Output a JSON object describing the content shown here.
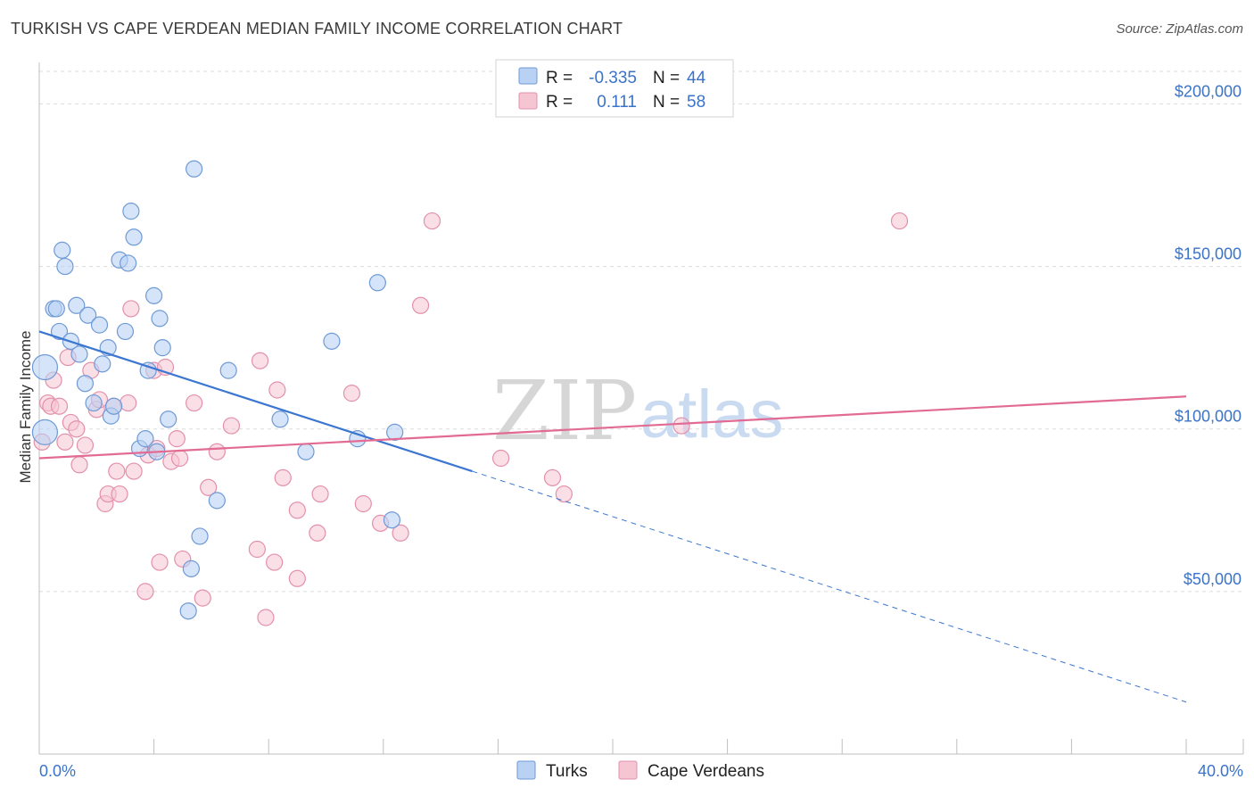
{
  "title": "TURKISH VS CAPE VERDEAN MEDIAN FAMILY INCOME CORRELATION CHART",
  "source": "Source: ZipAtlas.com",
  "watermark": {
    "zip": "ZIP",
    "atlas": "atlas"
  },
  "colors": {
    "turks_fill": "#b9d2f3",
    "turks_stroke": "#6f9ad6",
    "turks_line": "#3b76d1",
    "cape_fill": "#f6c5d4",
    "cape_stroke": "#e390ab",
    "cape_line": "#e26b93",
    "grid": "#dcdcdc",
    "axis_text": "#3a73c9"
  },
  "legend": {
    "rows": [
      {
        "r_label": "R =",
        "r_value": "-0.335",
        "n_label": "N =",
        "n_value": "44"
      },
      {
        "r_label": "R =",
        "r_value": "0.111",
        "n_label": "N =",
        "n_value": "58"
      }
    ]
  },
  "chart_data": {
    "type": "scatter",
    "title": "TURKISH VS CAPE VERDEAN MEDIAN FAMILY INCOME CORRELATION CHART",
    "xlabel": "",
    "ylabel": "Median Family Income",
    "xlim": [
      0,
      40
    ],
    "ylim": [
      0,
      210000
    ],
    "x_tick_labels": [
      "0.0%",
      "40.0%"
    ],
    "y_ticks": [
      50000,
      100000,
      150000,
      200000
    ],
    "y_tick_labels": [
      "$50,000",
      "$100,000",
      "$150,000",
      "$200,000"
    ],
    "grid": true,
    "legend_position": "top-center",
    "series": [
      {
        "name": "Turks",
        "r": -0.335,
        "n": 44,
        "trend": {
          "x0": 0,
          "y0": 130000,
          "x1": 15.1,
          "y1": 87000,
          "dashed_to_x": 40,
          "dashed_to_y": 16000
        },
        "points": [
          [
            0.2,
            119000
          ],
          [
            0.2,
            99000
          ],
          [
            0.5,
            137000
          ],
          [
            0.6,
            137000
          ],
          [
            0.7,
            130000
          ],
          [
            0.8,
            155000
          ],
          [
            0.9,
            150000
          ],
          [
            1.1,
            127000
          ],
          [
            1.3,
            138000
          ],
          [
            1.4,
            123000
          ],
          [
            1.6,
            114000
          ],
          [
            1.7,
            135000
          ],
          [
            1.9,
            108000
          ],
          [
            2.1,
            132000
          ],
          [
            2.2,
            120000
          ],
          [
            2.4,
            125000
          ],
          [
            2.5,
            104000
          ],
          [
            2.6,
            107000
          ],
          [
            2.8,
            152000
          ],
          [
            3.0,
            130000
          ],
          [
            3.1,
            151000
          ],
          [
            3.2,
            167000
          ],
          [
            3.3,
            159000
          ],
          [
            3.5,
            94000
          ],
          [
            3.7,
            97000
          ],
          [
            3.8,
            118000
          ],
          [
            4.0,
            141000
          ],
          [
            4.1,
            93000
          ],
          [
            4.2,
            134000
          ],
          [
            4.3,
            125000
          ],
          [
            4.5,
            103000
          ],
          [
            5.2,
            44000
          ],
          [
            5.3,
            57000
          ],
          [
            5.4,
            180000
          ],
          [
            5.6,
            67000
          ],
          [
            6.2,
            78000
          ],
          [
            6.6,
            118000
          ],
          [
            8.4,
            103000
          ],
          [
            9.3,
            93000
          ],
          [
            10.2,
            127000
          ],
          [
            11.1,
            97000
          ],
          [
            11.8,
            145000
          ],
          [
            12.3,
            72000
          ],
          [
            12.4,
            99000
          ]
        ]
      },
      {
        "name": "Cape Verdeans",
        "r": 0.111,
        "n": 58,
        "trend": {
          "x0": 0,
          "y0": 91000,
          "x1": 40,
          "y1": 110000
        },
        "points": [
          [
            0.1,
            96000
          ],
          [
            0.3,
            108000
          ],
          [
            0.4,
            107000
          ],
          [
            0.5,
            115000
          ],
          [
            0.7,
            107000
          ],
          [
            0.9,
            96000
          ],
          [
            1.0,
            122000
          ],
          [
            1.1,
            102000
          ],
          [
            1.3,
            100000
          ],
          [
            1.4,
            89000
          ],
          [
            1.6,
            95000
          ],
          [
            1.8,
            118000
          ],
          [
            2.0,
            106000
          ],
          [
            2.1,
            109000
          ],
          [
            2.3,
            77000
          ],
          [
            2.4,
            80000
          ],
          [
            2.6,
            107000
          ],
          [
            2.7,
            87000
          ],
          [
            2.8,
            80000
          ],
          [
            3.1,
            108000
          ],
          [
            3.2,
            137000
          ],
          [
            3.3,
            87000
          ],
          [
            3.7,
            50000
          ],
          [
            3.8,
            92000
          ],
          [
            4.0,
            118000
          ],
          [
            4.1,
            94000
          ],
          [
            4.2,
            59000
          ],
          [
            4.4,
            119000
          ],
          [
            4.6,
            90000
          ],
          [
            4.8,
            97000
          ],
          [
            4.9,
            91000
          ],
          [
            5.0,
            60000
          ],
          [
            5.4,
            108000
          ],
          [
            5.7,
            48000
          ],
          [
            5.9,
            82000
          ],
          [
            6.2,
            93000
          ],
          [
            6.7,
            101000
          ],
          [
            7.6,
            63000
          ],
          [
            7.7,
            121000
          ],
          [
            7.9,
            42000
          ],
          [
            8.2,
            59000
          ],
          [
            8.3,
            112000
          ],
          [
            8.5,
            85000
          ],
          [
            9.0,
            75000
          ],
          [
            9.0,
            54000
          ],
          [
            9.7,
            68000
          ],
          [
            9.8,
            80000
          ],
          [
            10.9,
            111000
          ],
          [
            11.3,
            77000
          ],
          [
            11.9,
            71000
          ],
          [
            12.6,
            68000
          ],
          [
            13.3,
            138000
          ],
          [
            13.7,
            164000
          ],
          [
            16.1,
            91000
          ],
          [
            17.9,
            85000
          ],
          [
            18.3,
            80000
          ],
          [
            22.4,
            101000
          ],
          [
            30.0,
            164000
          ]
        ]
      }
    ]
  },
  "bottom_legend": [
    {
      "label": "Turks"
    },
    {
      "label": "Cape Verdeans"
    }
  ]
}
